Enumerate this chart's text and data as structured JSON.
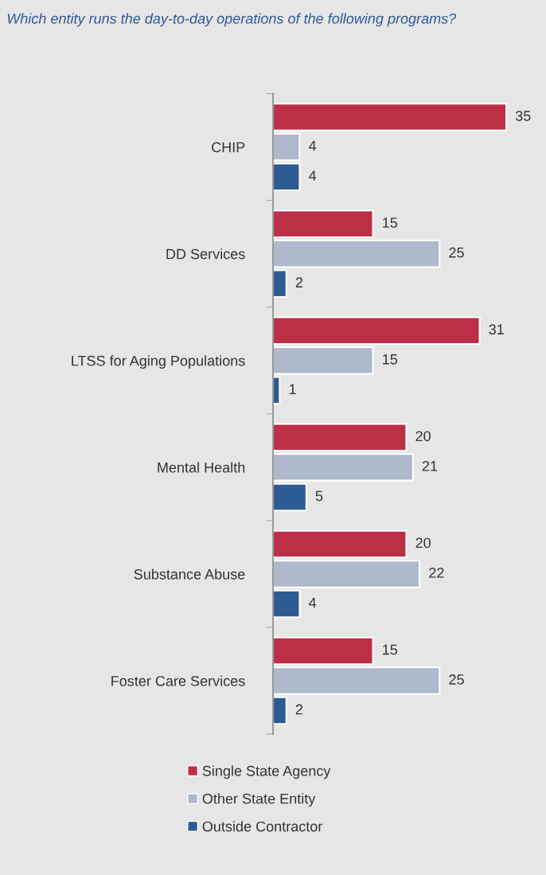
{
  "chart_data": {
    "type": "bar",
    "orientation": "horizontal",
    "title": "Which entity runs the day-to-day operations of the following programs?",
    "categories": [
      "CHIP",
      "DD Services",
      "LTSS for Aging Populations",
      "Mental Health",
      "Substance Abuse",
      "Foster Care Services"
    ],
    "series": [
      {
        "name": "Single State Agency",
        "color": "#bd2f47",
        "values": [
          35,
          15,
          31,
          20,
          20,
          15
        ]
      },
      {
        "name": "Other State Entity",
        "color": "#aebacb",
        "values": [
          4,
          25,
          15,
          21,
          22,
          25
        ]
      },
      {
        "name": "Outside Contractor",
        "color": "#2d5b94",
        "values": [
          4,
          2,
          1,
          5,
          4,
          2
        ]
      }
    ],
    "data_labels": true,
    "legend": "bottom",
    "grid": false
  }
}
